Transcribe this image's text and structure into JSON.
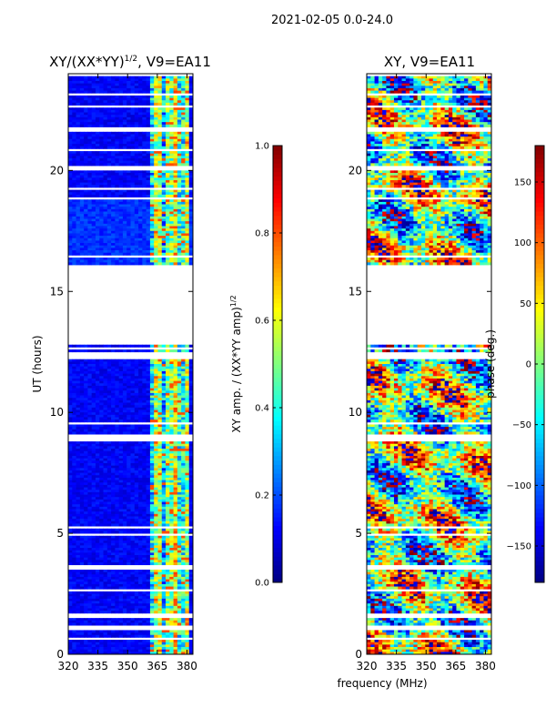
{
  "suptitle": "2021-02-05 0.0-24.0",
  "xlabel": "frequency (MHz)",
  "chart_data": [
    {
      "type": "heatmap",
      "title": "XY/(XX*YY)",
      "title_sup": "1/2",
      "title_tail": ", V9=EA11",
      "xlabel": "frequency (MHz)",
      "ylabel": "UT (hours)",
      "xlim": [
        320,
        383
      ],
      "ylim": [
        0,
        24
      ],
      "xticks": [
        320,
        335,
        350,
        365,
        380
      ],
      "yticks": [
        0,
        5,
        10,
        15,
        20
      ],
      "colorbar": {
        "label": "XY amp. / (XX*YY amp)",
        "label_sup": "1/2",
        "range": [
          0.0,
          1.0
        ],
        "ticks": [
          "0.0",
          "0.2",
          "0.4",
          "0.6",
          "0.8",
          "1.0"
        ],
        "colormap": "jet"
      },
      "description": "Mostly low normalized amplitude (~0.05-0.15) with high-amplitude vertical stripes near 362-380 MHz; data gap 12.8-16.1 h."
    },
    {
      "type": "heatmap",
      "title": "XY, V9=EA11",
      "xlabel": "frequency (MHz)",
      "ylabel": "",
      "xlim": [
        320,
        383
      ],
      "ylim": [
        0,
        24
      ],
      "xticks": [
        320,
        335,
        350,
        365,
        380
      ],
      "yticks": [
        0,
        5,
        10,
        15,
        20
      ],
      "colorbar": {
        "label": "phase (deg.)",
        "range": [
          -180,
          180
        ],
        "ticks": [
          "−150",
          "−100",
          "−50",
          "0",
          "50",
          "100",
          "150"
        ],
        "colormap": "jet"
      },
      "description": "XY phase varying across full -180..180 range; data gap 12.8-16.1 h."
    }
  ],
  "time_series": {
    "blank_ranges_hours": [
      [
        0.6,
        0.7
      ],
      [
        1.05,
        1.15
      ],
      [
        1.45,
        1.7
      ],
      [
        2.6,
        2.7
      ],
      [
        3.3,
        3.35
      ],
      [
        3.55,
        3.65
      ],
      [
        4.0,
        4.05
      ],
      [
        4.45,
        4.55
      ],
      [
        4.9,
        5.0
      ],
      [
        5.2,
        5.3
      ],
      [
        5.5,
        5.55
      ],
      [
        5.95,
        6.0
      ],
      [
        6.3,
        6.35
      ],
      [
        6.65,
        6.75
      ],
      [
        7.2,
        7.25
      ],
      [
        8.5,
        8.55
      ],
      [
        8.85,
        9.15
      ],
      [
        9.55,
        9.6
      ],
      [
        10.1,
        10.15
      ],
      [
        10.6,
        10.65
      ],
      [
        11.0,
        11.05
      ],
      [
        11.4,
        11.45
      ],
      [
        12.2,
        12.5
      ],
      [
        12.6,
        12.7
      ],
      [
        12.8,
        16.1
      ],
      [
        16.45,
        16.55
      ],
      [
        17.8,
        17.85
      ],
      [
        18.3,
        18.35
      ],
      [
        18.8,
        18.9
      ],
      [
        19.2,
        19.3
      ],
      [
        19.8,
        19.85
      ],
      [
        20.05,
        20.2
      ],
      [
        20.8,
        20.95
      ],
      [
        21.6,
        21.85
      ],
      [
        22.6,
        22.75
      ],
      [
        23.15,
        23.25
      ],
      [
        23.7,
        23.75
      ],
      [
        23.95,
        24.0
      ]
    ]
  }
}
